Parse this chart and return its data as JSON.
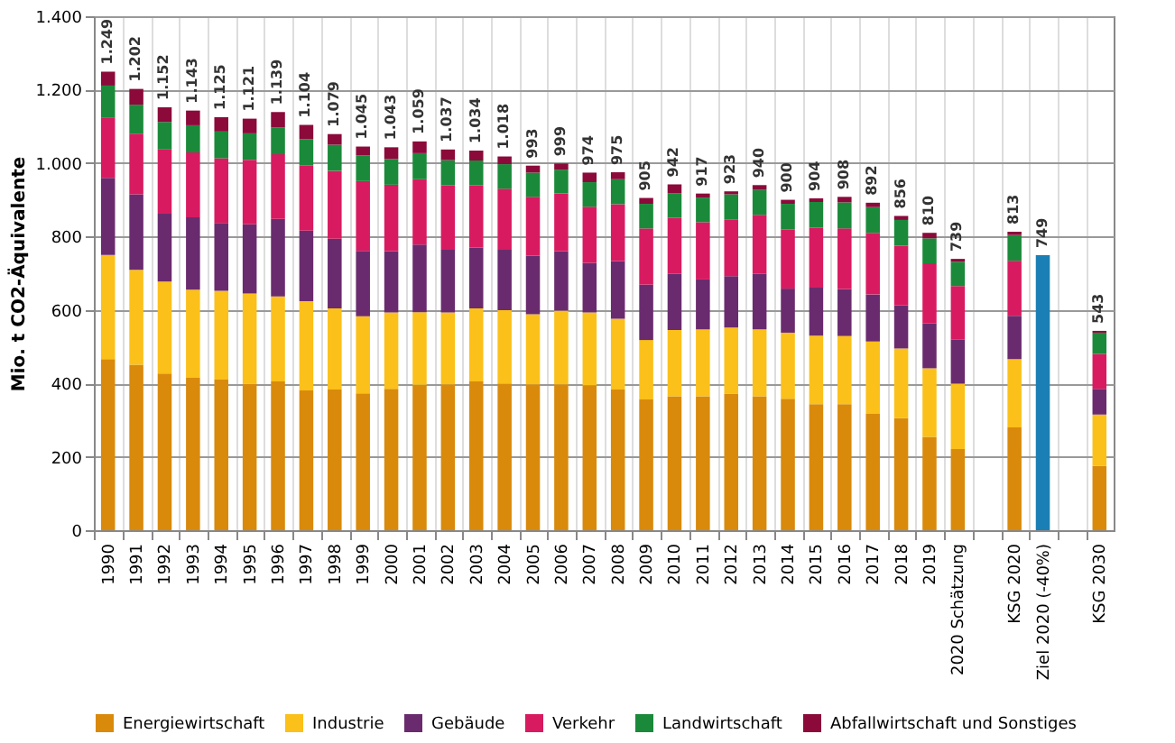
{
  "chart_data": {
    "type": "bar",
    "stacked": true,
    "ylabel": "Mio. t CO2-Äquivalente",
    "categories": [
      "1990",
      "1991",
      "1992",
      "1993",
      "1994",
      "1995",
      "1996",
      "1997",
      "1998",
      "1999",
      "2000",
      "2001",
      "2002",
      "2003",
      "2004",
      "2005",
      "2006",
      "2007",
      "2008",
      "2009",
      "2010",
      "2011",
      "2012",
      "2013",
      "2014",
      "2015",
      "2016",
      "2017",
      "2018",
      "2019",
      "2020 Schätzung",
      null,
      "KSG 2020",
      "Ziel 2020 (-40%)",
      null,
      "KSG 2030"
    ],
    "series": [
      {
        "name": "Energiewirtschaft",
        "color": "#d98a0b",
        "values": [
          466,
          451,
          427,
          415,
          410,
          399,
          405,
          381,
          383,
          373,
          385,
          396,
          397,
          405,
          400,
          397,
          397,
          395,
          383,
          356,
          365,
          365,
          372,
          365,
          358,
          343,
          343,
          317,
          305,
          254,
          221,
          null,
          280,
          null,
          null,
          175
        ]
      },
      {
        "name": "Industrie",
        "color": "#fbc01a",
        "values": [
          284,
          258,
          250,
          240,
          242,
          246,
          232,
          243,
          221,
          210,
          208,
          198,
          196,
          199,
          199,
          191,
          201,
          198,
          193,
          162,
          180,
          182,
          180,
          182,
          180,
          187,
          186,
          197,
          190,
          187,
          178,
          null,
          186,
          null,
          null,
          140
        ]
      },
      {
        "name": "Gebäude",
        "color": "#6a2b6e",
        "values": [
          210,
          206,
          185,
          197,
          185,
          188,
          211,
          192,
          190,
          178,
          167,
          184,
          171,
          166,
          165,
          160,
          162,
          135,
          157,
          151,
          153,
          136,
          140,
          151,
          120,
          131,
          128,
          128,
          117,
          122,
          120,
          null,
          118,
          null,
          null,
          70
        ]
      },
      {
        "name": "Verkehr",
        "color": "#d81b60",
        "values": [
          164,
          165,
          175,
          177,
          176,
          176,
          176,
          177,
          185,
          190,
          181,
          178,
          175,
          169,
          166,
          160,
          157,
          153,
          155,
          153,
          153,
          156,
          155,
          161,
          161,
          163,
          165,
          168,
          163,
          164,
          146,
          null,
          150,
          null,
          null,
          95
        ]
      },
      {
        "name": "Landwirtschaft",
        "color": "#1a8a3a",
        "values": [
          87,
          79,
          75,
          74,
          73,
          72,
          73,
          72,
          71,
          70,
          70,
          71,
          69,
          68,
          67,
          66,
          65,
          67,
          68,
          67,
          67,
          67,
          68,
          68,
          70,
          70,
          71,
          70,
          70,
          68,
          66,
          null,
          70,
          null,
          null,
          58
        ]
      },
      {
        "name": "Abfallwirtschaft und Sonstiges",
        "color": "#8b0a3a",
        "values": [
          38,
          43,
          40,
          40,
          39,
          40,
          42,
          39,
          29,
          24,
          32,
          32,
          29,
          27,
          21,
          19,
          17,
          26,
          19,
          16,
          24,
          11,
          8,
          13,
          11,
          10,
          15,
          12,
          11,
          15,
          8,
          null,
          9,
          null,
          null,
          5
        ]
      },
      {
        "color": "#1a7fb5",
        "values": [
          null,
          null,
          null,
          null,
          null,
          null,
          null,
          null,
          null,
          null,
          null,
          null,
          null,
          null,
          null,
          null,
          null,
          null,
          null,
          null,
          null,
          null,
          null,
          null,
          null,
          null,
          null,
          null,
          null,
          null,
          null,
          null,
          null,
          749,
          null,
          null
        ]
      }
    ],
    "totals": [
      "1.249",
      "1.202",
      "1.152",
      "1.143",
      "1.125",
      "1.121",
      "1.139",
      "1.104",
      "1.079",
      "1.045",
      "1.043",
      "1.059",
      "1.037",
      "1.034",
      "1.018",
      "993",
      "999",
      "974",
      "975",
      "905",
      "942",
      "917",
      "923",
      "940",
      "900",
      "904",
      "908",
      "892",
      "856",
      "810",
      "739",
      null,
      "813",
      "749",
      null,
      "543"
    ],
    "ylim": [
      0,
      1400
    ],
    "yticks": [
      0,
      200,
      400,
      600,
      800,
      {
        "value": 1000,
        "label": "1.000"
      },
      {
        "value": 1200,
        "label": "1.200"
      },
      {
        "value": 1400,
        "label": "1.400"
      }
    ],
    "grid": true,
    "legend": "bottom"
  }
}
